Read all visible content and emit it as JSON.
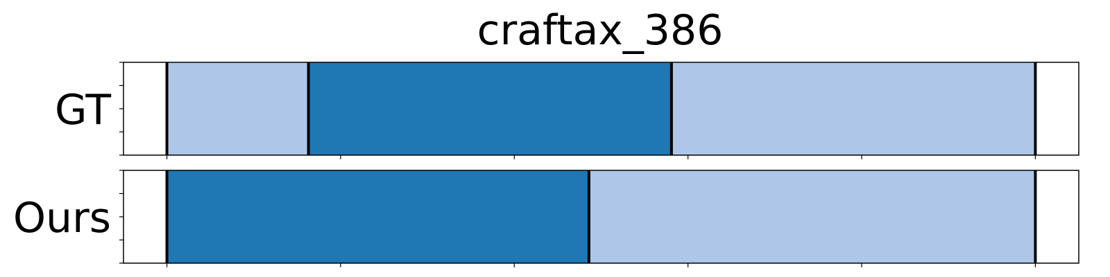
{
  "chart_data": {
    "type": "bar",
    "title": "craftax_386",
    "xlabel": "",
    "ylabel": "",
    "xlim": [
      0,
      1.1
    ],
    "x_ticks": [
      0.05,
      0.25,
      0.45,
      0.65,
      0.85,
      1.05
    ],
    "x_tick_labels": [],
    "grid": false,
    "legend": "none",
    "rows": [
      {
        "label": "GT",
        "segments": [
          {
            "start": 0.05,
            "end": 0.213,
            "color": "#aec7e8"
          },
          {
            "start": 0.213,
            "end": 0.631,
            "color": "#1f77b4"
          },
          {
            "start": 0.631,
            "end": 1.05,
            "color": "#aec7e8"
          }
        ]
      },
      {
        "label": "Ours",
        "segments": [
          {
            "start": 0.05,
            "end": 0.536,
            "color": "#1f77b4"
          },
          {
            "start": 0.536,
            "end": 1.05,
            "color": "#aec7e8"
          }
        ]
      }
    ]
  },
  "colors": {
    "dark_segment": "#1f77b4",
    "light_segment": "#aec7e8",
    "boundary": "#000000",
    "background": "#ffffff"
  }
}
